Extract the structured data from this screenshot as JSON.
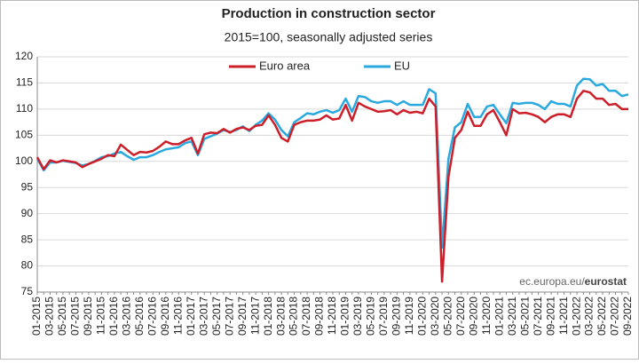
{
  "chart_data": {
    "type": "line",
    "title": "Production in construction sector",
    "subtitle": "2015=100, seasonally adjusted series",
    "source_site": "ec.europa.eu/",
    "source_brand": "eurostat",
    "categories": [
      "01-2015",
      null,
      "03-2015",
      null,
      "05-2015",
      null,
      "07-2015",
      null,
      "09-2015",
      null,
      "11-2015",
      null,
      "01-2016",
      null,
      "03-2016",
      null,
      "05-2016",
      null,
      "07-2016",
      null,
      "09-2016",
      null,
      "11-2016",
      null,
      "01-2017",
      null,
      "03-2017",
      null,
      "05-2017",
      null,
      "07-2017",
      null,
      "09-2017",
      null,
      "11-2017",
      null,
      "01-2018",
      null,
      "03-2018",
      null,
      "05-2018",
      null,
      "07-2018",
      null,
      "09-2018",
      null,
      "11-2018",
      null,
      "01-2019",
      null,
      "03-2019",
      null,
      "05-2019",
      null,
      "07-2019",
      null,
      "09-2019",
      null,
      "11-2019",
      null,
      "01-2020",
      null,
      "03-2020",
      null,
      "05-2020",
      null,
      "07-2020",
      null,
      "09-2020",
      null,
      "11-2020",
      null,
      "01-2021",
      null,
      "03-2021",
      null,
      "05-2021",
      null,
      "07-2021",
      null,
      "09-2021",
      null,
      "11-2021",
      null,
      "01-2022",
      null,
      "03-2022",
      null,
      "05-2022",
      null,
      "07-2022",
      null,
      "09-2022"
    ],
    "series": [
      {
        "name": "Euro area",
        "color": "#cc1f2a",
        "values": [
          100.8,
          98.5,
          100.2,
          99.8,
          100.2,
          100.0,
          99.8,
          98.9,
          99.5,
          100.0,
          100.5,
          101.2,
          101.0,
          103.2,
          102.2,
          101.2,
          101.8,
          101.7,
          102.0,
          102.8,
          103.8,
          103.3,
          103.3,
          104.0,
          104.5,
          101.5,
          105.2,
          105.5,
          105.4,
          106.2,
          105.5,
          106.2,
          106.5,
          106.0,
          106.8,
          107.0,
          108.8,
          107.0,
          104.5,
          103.8,
          107.0,
          107.5,
          107.8,
          107.8,
          108.0,
          108.8,
          108.0,
          108.2,
          110.8,
          107.8,
          111.2,
          110.5,
          110.0,
          109.5,
          109.6,
          109.8,
          109.0,
          109.8,
          109.3,
          109.5,
          109.2,
          112.0,
          110.5,
          77.0,
          97.0,
          104.5,
          106.0,
          109.5,
          106.8,
          106.8,
          109.0,
          109.8,
          107.5,
          105.0,
          110.0,
          109.2,
          109.3,
          109.0,
          108.5,
          107.5,
          108.5,
          109.0,
          109.0,
          108.5,
          112.0,
          113.5,
          113.2,
          112.0,
          112.0,
          110.8,
          111.0,
          110.0,
          110.0
        ]
      },
      {
        "name": "EU",
        "color": "#2aa9df",
        "values": [
          100.5,
          98.3,
          99.8,
          99.8,
          100.1,
          99.9,
          99.7,
          99.2,
          99.5,
          100.1,
          100.8,
          101.0,
          101.5,
          101.8,
          101.0,
          100.3,
          100.8,
          100.8,
          101.2,
          101.8,
          102.3,
          102.5,
          102.7,
          103.5,
          103.8,
          101.2,
          104.3,
          104.8,
          105.3,
          106.0,
          105.6,
          106.0,
          106.7,
          105.8,
          107.0,
          107.8,
          109.2,
          108.0,
          106.0,
          104.8,
          107.5,
          108.3,
          109.2,
          109.0,
          109.5,
          109.8,
          109.3,
          109.8,
          112.0,
          109.5,
          112.5,
          112.3,
          111.5,
          111.2,
          111.5,
          111.5,
          110.8,
          111.5,
          110.8,
          110.8,
          110.8,
          113.8,
          113.0,
          83.5,
          100.5,
          106.5,
          107.5,
          111.0,
          108.5,
          108.5,
          110.5,
          110.8,
          109.0,
          107.3,
          111.2,
          111.0,
          111.2,
          111.2,
          110.8,
          110.0,
          111.5,
          111.0,
          111.0,
          110.5,
          114.5,
          115.8,
          115.7,
          114.5,
          114.8,
          113.5,
          113.5,
          112.5,
          112.8
        ]
      }
    ],
    "ylim": [
      75,
      120
    ],
    "yticks": [
      75,
      80,
      85,
      90,
      95,
      100,
      105,
      110,
      115,
      120
    ],
    "grid": true
  }
}
